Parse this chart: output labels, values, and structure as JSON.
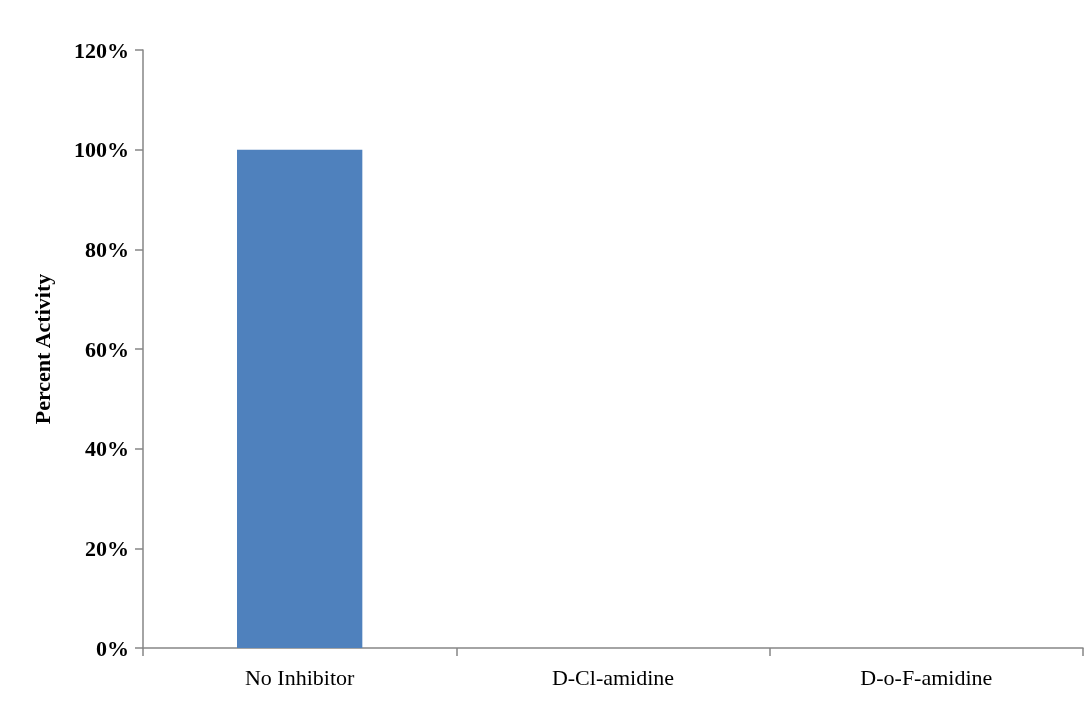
{
  "chart_data": {
    "type": "bar",
    "ylabel": "Percent Activity",
    "categories": [
      "No Inhibitor",
      "D-Cl-amidine",
      "D-o-F-amidine"
    ],
    "values": [
      100,
      0,
      0
    ],
    "color": "#4f81bd",
    "ylim": [
      0,
      120
    ],
    "yticks": [
      {
        "value": 0,
        "label": "0%"
      },
      {
        "value": 20,
        "label": "20%"
      },
      {
        "value": 40,
        "label": "40%"
      },
      {
        "value": 60,
        "label": "60%"
      },
      {
        "value": 80,
        "label": "80%"
      },
      {
        "value": 100,
        "label": "100%"
      },
      {
        "value": 120,
        "label": "120%"
      }
    ],
    "grid": false
  }
}
